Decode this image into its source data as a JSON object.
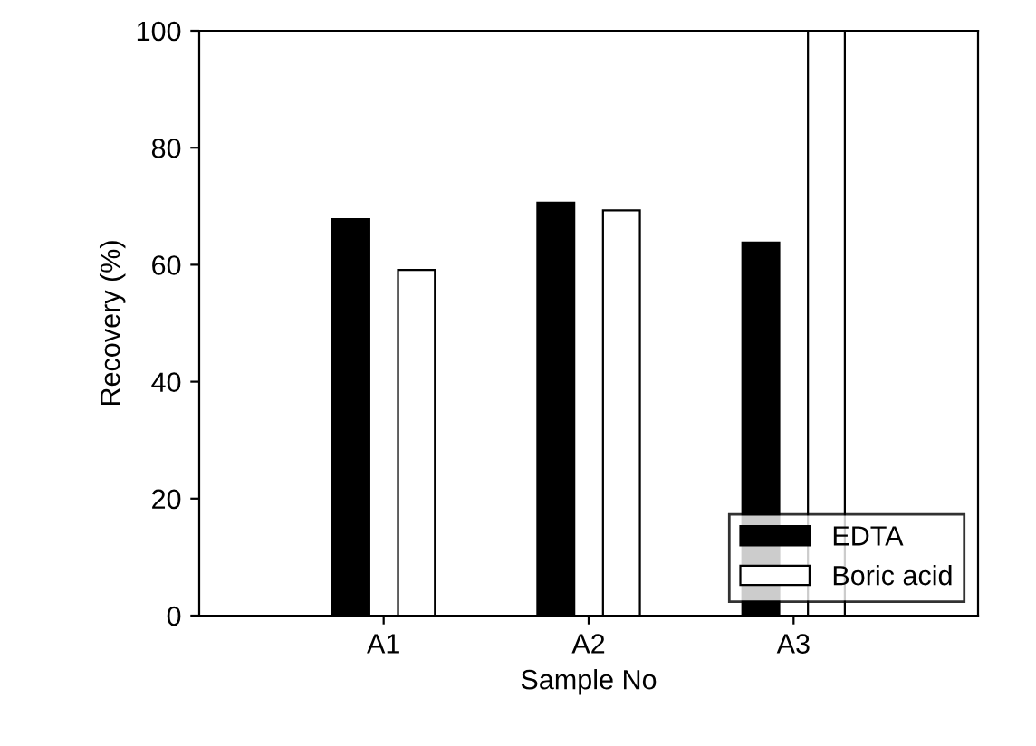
{
  "chart_data": {
    "type": "bar",
    "xlabel": "Sample No",
    "ylabel": "Recovery (%)",
    "categories": [
      "A1",
      "A2",
      "A3"
    ],
    "series": [
      {
        "name": "EDTA",
        "color": "#000000",
        "values": [
          67.8,
          70.6,
          63.8
        ]
      },
      {
        "name": "Boric acid",
        "color": "#ffffff",
        "values": [
          59.1,
          69.3,
          100
        ]
      }
    ],
    "ylim": [
      0,
      100
    ],
    "yticks": [
      0,
      20,
      40,
      60,
      80,
      100
    ],
    "grid": false,
    "legend": "bottom right"
  }
}
